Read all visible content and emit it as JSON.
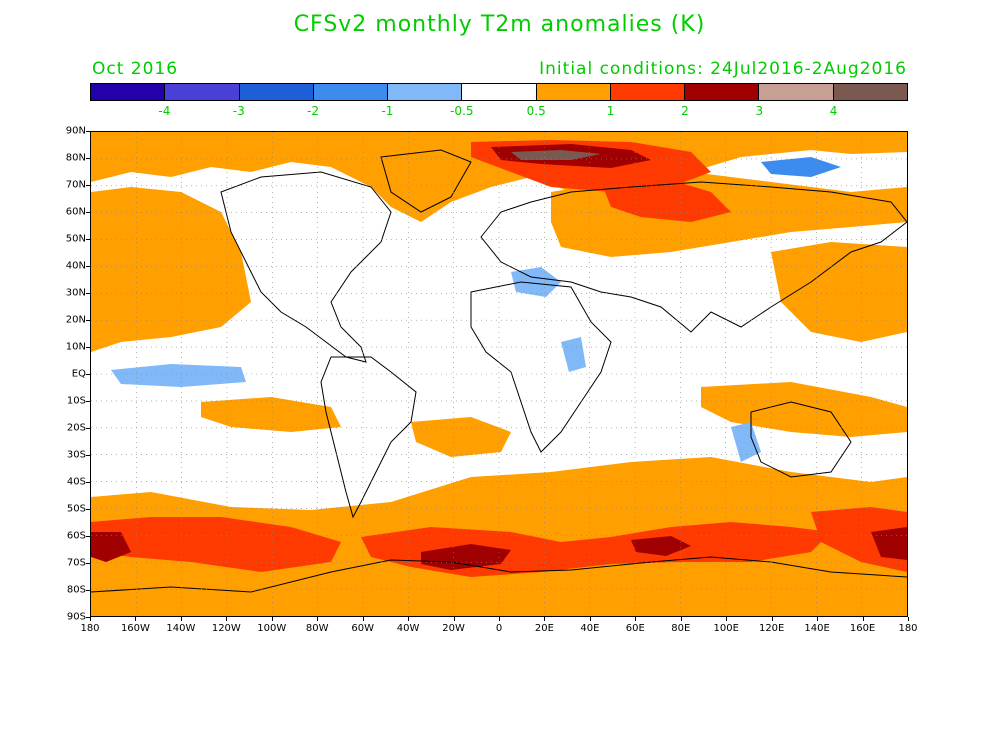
{
  "title": "CFSv2 monthly T2m anomalies (K)",
  "month": "Oct 2016",
  "initial_conditions": "Initial conditions: 24Jul2016-2Aug2016",
  "text_color": "#00cc00",
  "colorbar": {
    "colors": [
      "#2200aa",
      "#4a3fd6",
      "#1d5fd6",
      "#3c8cf0",
      "#80b8f8",
      "#ffffff",
      "#ff9f00",
      "#ff3a00",
      "#a00000",
      "#c89f94",
      "#7a5a50"
    ],
    "labels": [
      "-4",
      "-3",
      "-2",
      "-1",
      "-0.5",
      "0.5",
      "1",
      "2",
      "3",
      "4"
    ]
  },
  "lat_labels": [
    "90N",
    "80N",
    "70N",
    "60N",
    "50N",
    "40N",
    "30N",
    "20N",
    "10N",
    "EQ",
    "10S",
    "20S",
    "30S",
    "40S",
    "50S",
    "60S",
    "70S",
    "80S",
    "90S"
  ],
  "lon_labels": [
    "180",
    "160W",
    "140W",
    "120W",
    "100W",
    "80W",
    "60W",
    "40W",
    "20W",
    "0",
    "20E",
    "40E",
    "60E",
    "80E",
    "100E",
    "120E",
    "140E",
    "160E",
    "180"
  ]
}
